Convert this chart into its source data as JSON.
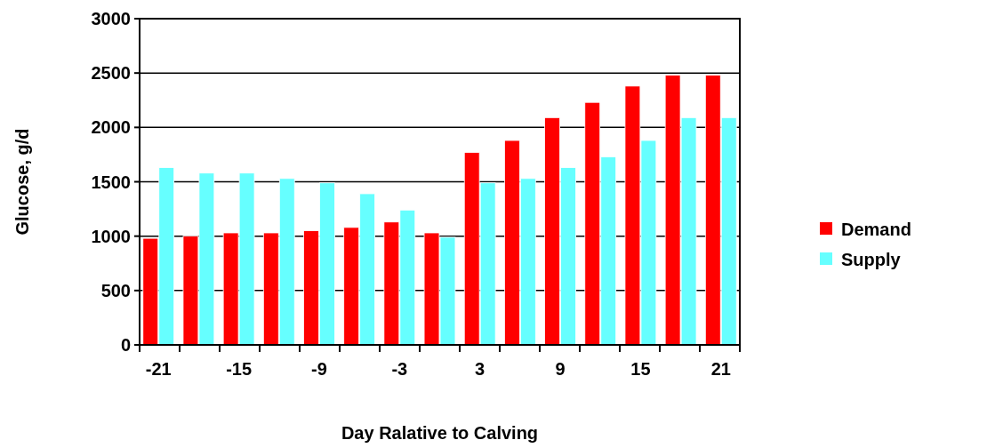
{
  "chart_data": {
    "type": "bar",
    "xlabel": "Day Ralative to Calving",
    "ylabel": "Glucose, g/d",
    "categories": [
      "-21",
      null,
      "-15",
      null,
      "-9",
      null,
      "-3",
      null,
      "3",
      null,
      "9",
      null,
      "15",
      null,
      "21"
    ],
    "series": [
      {
        "name": "Demand",
        "color": "#ff0000",
        "values": [
          980,
          1000,
          1030,
          1030,
          1050,
          1080,
          1130,
          1030,
          1770,
          1880,
          2090,
          2230,
          2380,
          2480,
          2480
        ]
      },
      {
        "name": "Supply",
        "color": "#66ffff",
        "values": [
          1630,
          1580,
          1580,
          1530,
          1490,
          1390,
          1240,
          990,
          1490,
          1530,
          1630,
          1730,
          1880,
          2090,
          2090
        ]
      }
    ],
    "ylim": [
      0,
      3000
    ],
    "yticks": [
      0,
      500,
      1000,
      1500,
      2000,
      2500,
      3000
    ],
    "grid": "y",
    "legend": "right"
  }
}
